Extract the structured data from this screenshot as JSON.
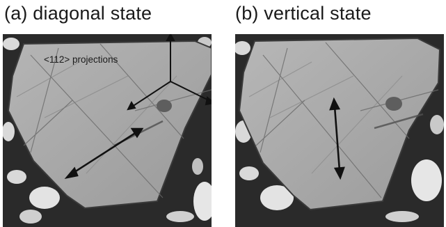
{
  "panels": [
    {
      "label": "(a) diagonal state"
    },
    {
      "label": "(b) vertical state"
    }
  ],
  "annotation": "<112> projections",
  "colors": {
    "crystal": "#a3a3a3",
    "crystal_light": "#b4b4b4",
    "background_dark": "#252525",
    "grain_light": "#d8d8d8",
    "line": "#111111"
  },
  "icons": [
    "double-headed-arrow",
    "three-axis-star"
  ]
}
